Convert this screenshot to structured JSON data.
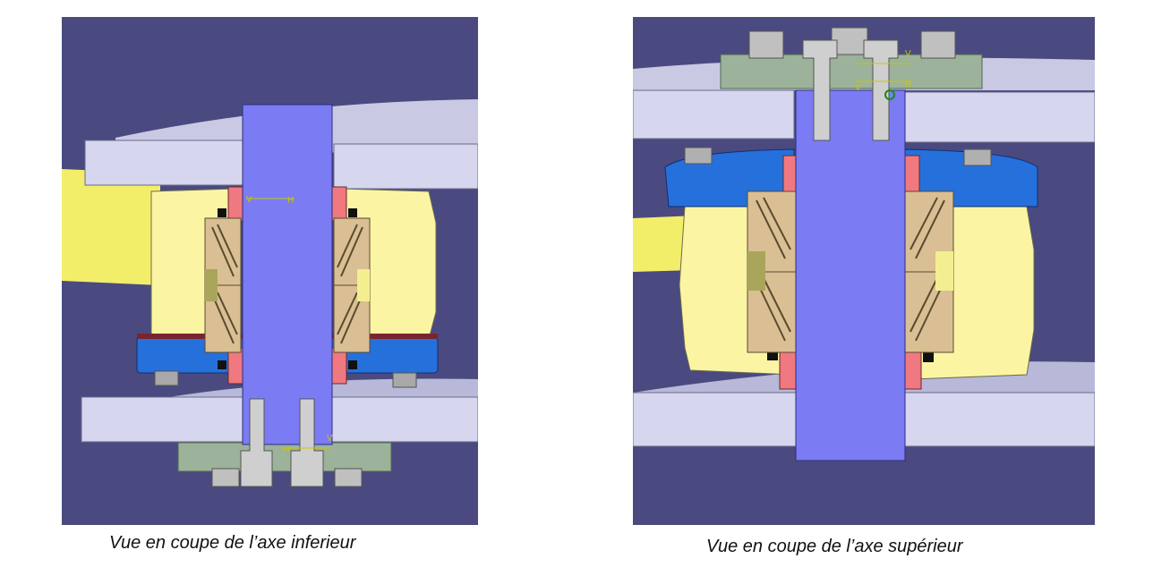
{
  "captions": {
    "left": "Vue en coupe de l’axe inferieur",
    "right": "Vue en coupe de l’axe supérieur"
  },
  "left_view": {
    "dimension_labels": [
      "V",
      "H",
      "H",
      "V"
    ]
  },
  "right_view": {
    "dimension_labels": [
      "V",
      "V",
      "H"
    ]
  },
  "colors": {
    "background": "#4a4a80",
    "plate": "#d2d2ea",
    "shaft": "#7b7bf4",
    "housing_yellow": "#fbf5a3",
    "flange_blue": "#2670dc",
    "seal_red": "#f07880",
    "bearing_tan": "#d9bf93",
    "bolt_grey": "#c2c2c2",
    "washer_green": "#9cb29a",
    "dimension_yellow": "#c8c800"
  }
}
